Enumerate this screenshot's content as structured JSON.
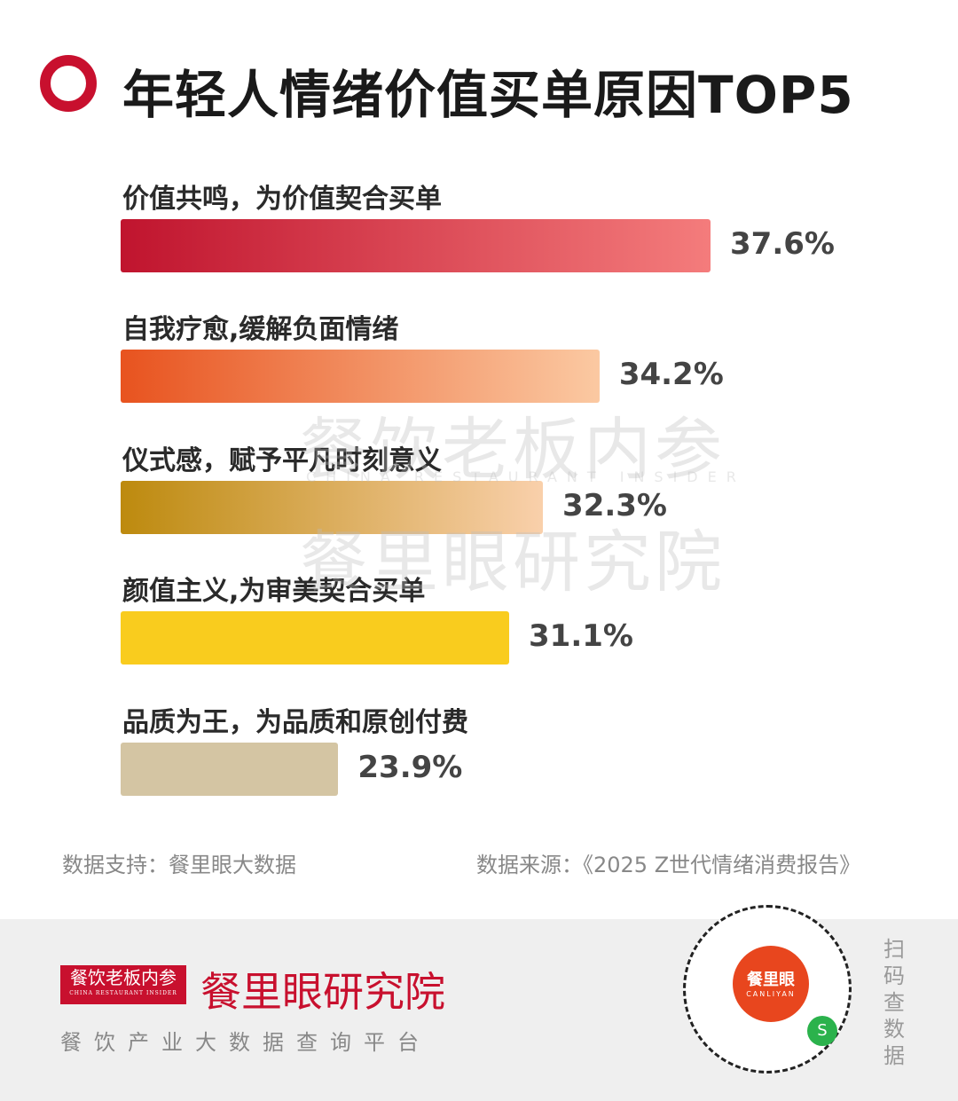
{
  "title": "年轻人情绪价值买单原因TOP5",
  "chart_data": {
    "type": "bar",
    "orientation": "horizontal",
    "title": "年轻人情绪价值买单原因TOP5",
    "categories": [
      "价值共鸣，为价值契合买单",
      "自我疗愈,缓解负面情绪",
      "仪式感，赋予平凡时刻意义",
      "颜值主义,为审美契合买单",
      "品质为王，为品质和原创付费"
    ],
    "values": [
      37.6,
      34.2,
      32.3,
      31.1,
      23.9
    ],
    "value_labels": [
      "37.6%",
      "34.2%",
      "32.3%",
      "31.1%",
      "23.9%"
    ],
    "unit": "%",
    "colors": [
      [
        "#c0142e",
        "#f47c7c"
      ],
      [
        "#e8531f",
        "#fbc9a2"
      ],
      [
        "#bd8a0e",
        "#f9d0ab"
      ],
      [
        "#f9cc1e",
        "#f9cc1e"
      ],
      [
        "#d4c5a3",
        "#d4c5a3"
      ]
    ],
    "grid": false
  },
  "watermark": {
    "line1": "餐饮老板内参",
    "line2": "CHINA RESTAURANT INSIDER",
    "line3": "餐里眼研究院"
  },
  "notes": {
    "support": "数据支持：餐里眼大数据",
    "source": "数据来源：《2025 Z世代情绪消费报告》"
  },
  "footer": {
    "logo_text": "餐饮老板内参",
    "logo_sub": "CHINA RESTAURANT INSIDER",
    "brand": "餐里眼研究院",
    "slogan": "餐饮产业大数据查询平台",
    "qr_center": "餐里眼",
    "qr_center_sub": "CANLIYAN",
    "scan_text": "扫码查数据"
  }
}
